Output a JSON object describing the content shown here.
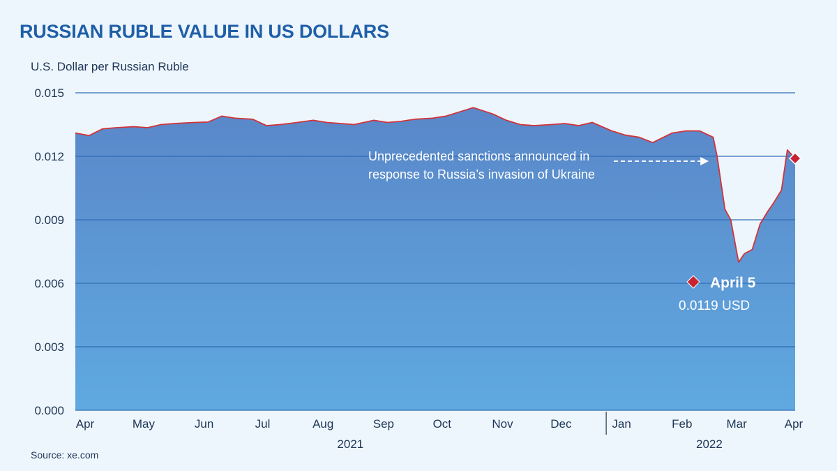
{
  "header": {
    "title": "RUSSIAN RUBLE VALUE IN US DOLLARS",
    "ylabel": "U.S. Dollar per Russian Ruble",
    "source": "Source: xe.com"
  },
  "colors": {
    "area_top": "#5a87c9",
    "area_bottom": "#5fa9e0",
    "line": "#d0343a",
    "marker": "#c82333",
    "grid": "#2f6db5",
    "text": "#1e3555",
    "title": "#1f5fa8"
  },
  "chart_data": {
    "type": "area",
    "title": "RUSSIAN RUBLE VALUE IN US DOLLARS",
    "ylabel": "U.S. Dollar per Russian Ruble",
    "ylim": [
      0,
      0.015
    ],
    "yticks": [
      "0.000",
      "0.003",
      "0.006",
      "0.009",
      "0.012",
      "0.015"
    ],
    "grid": true,
    "xlim": [
      "2021-04-01",
      "2022-04-05"
    ],
    "month_labels": [
      {
        "label": "Apr",
        "date": "2021-04-01"
      },
      {
        "label": "May",
        "date": "2021-05-01"
      },
      {
        "label": "Jun",
        "date": "2021-06-01"
      },
      {
        "label": "Jul",
        "date": "2021-07-01"
      },
      {
        "label": "Aug",
        "date": "2021-08-01"
      },
      {
        "label": "Sep",
        "date": "2021-09-01"
      },
      {
        "label": "Oct",
        "date": "2021-10-01"
      },
      {
        "label": "Nov",
        "date": "2021-11-01"
      },
      {
        "label": "Dec",
        "date": "2021-12-01"
      },
      {
        "label": "Jan",
        "date": "2022-01-01"
      },
      {
        "label": "Feb",
        "date": "2022-02-01"
      },
      {
        "label": "Mar",
        "date": "2022-03-01"
      },
      {
        "label": "Apr",
        "date": "2022-04-01"
      }
    ],
    "year_labels": [
      {
        "label": "2021",
        "date": "2021-08-20"
      },
      {
        "label": "2022",
        "date": "2022-02-20"
      }
    ],
    "year_divider": "2022-01-01",
    "series": [
      {
        "x": [
          "2021-04-01",
          "2021-04-08",
          "2021-04-15",
          "2021-04-22",
          "2021-05-01",
          "2021-05-08",
          "2021-05-15",
          "2021-05-22",
          "2021-06-01",
          "2021-06-08",
          "2021-06-15",
          "2021-06-22",
          "2021-07-01",
          "2021-07-08",
          "2021-07-15",
          "2021-07-22",
          "2021-08-01",
          "2021-08-08",
          "2021-08-15",
          "2021-08-22",
          "2021-09-01",
          "2021-09-08",
          "2021-09-15",
          "2021-09-22",
          "2021-10-01",
          "2021-10-08",
          "2021-10-15",
          "2021-10-22",
          "2021-11-01",
          "2021-11-08",
          "2021-11-15",
          "2021-11-22",
          "2021-12-01",
          "2021-12-08",
          "2021-12-15",
          "2021-12-22",
          "2022-01-01",
          "2022-01-08",
          "2022-01-15",
          "2022-01-22",
          "2022-02-01",
          "2022-02-08",
          "2022-02-15",
          "2022-02-22",
          "2022-02-24",
          "2022-02-28",
          "2022-03-03",
          "2022-03-07",
          "2022-03-10",
          "2022-03-14",
          "2022-03-18",
          "2022-03-22",
          "2022-03-25",
          "2022-03-29",
          "2022-04-01",
          "2022-04-05"
        ],
        "values": [
          0.0131,
          0.01298,
          0.0133,
          0.01335,
          0.0134,
          0.01335,
          0.0135,
          0.01355,
          0.0136,
          0.01362,
          0.0139,
          0.0138,
          0.01375,
          0.01345,
          0.0135,
          0.01358,
          0.0137,
          0.0136,
          0.01355,
          0.0135,
          0.0137,
          0.0136,
          0.01365,
          0.01375,
          0.0138,
          0.0139,
          0.0141,
          0.0143,
          0.014,
          0.0137,
          0.0135,
          0.01345,
          0.0135,
          0.01355,
          0.01345,
          0.0136,
          0.0132,
          0.013,
          0.0129,
          0.01265,
          0.0131,
          0.0132,
          0.0132,
          0.0129,
          0.012,
          0.0095,
          0.009,
          0.007,
          0.0074,
          0.0076,
          0.0088,
          0.0094,
          0.0098,
          0.0104,
          0.0123,
          0.0119
        ]
      }
    ],
    "annotations": [
      {
        "text": [
          "Unprecedented sanctions announced in",
          "response to Russia’s invasion of Ukraine"
        ],
        "x": "2022-02-24",
        "y": 0.012
      }
    ],
    "callout": {
      "date_label": "April 5",
      "value_label": "0.0119 USD",
      "x": "2022-04-05",
      "y": 0.0119
    }
  }
}
